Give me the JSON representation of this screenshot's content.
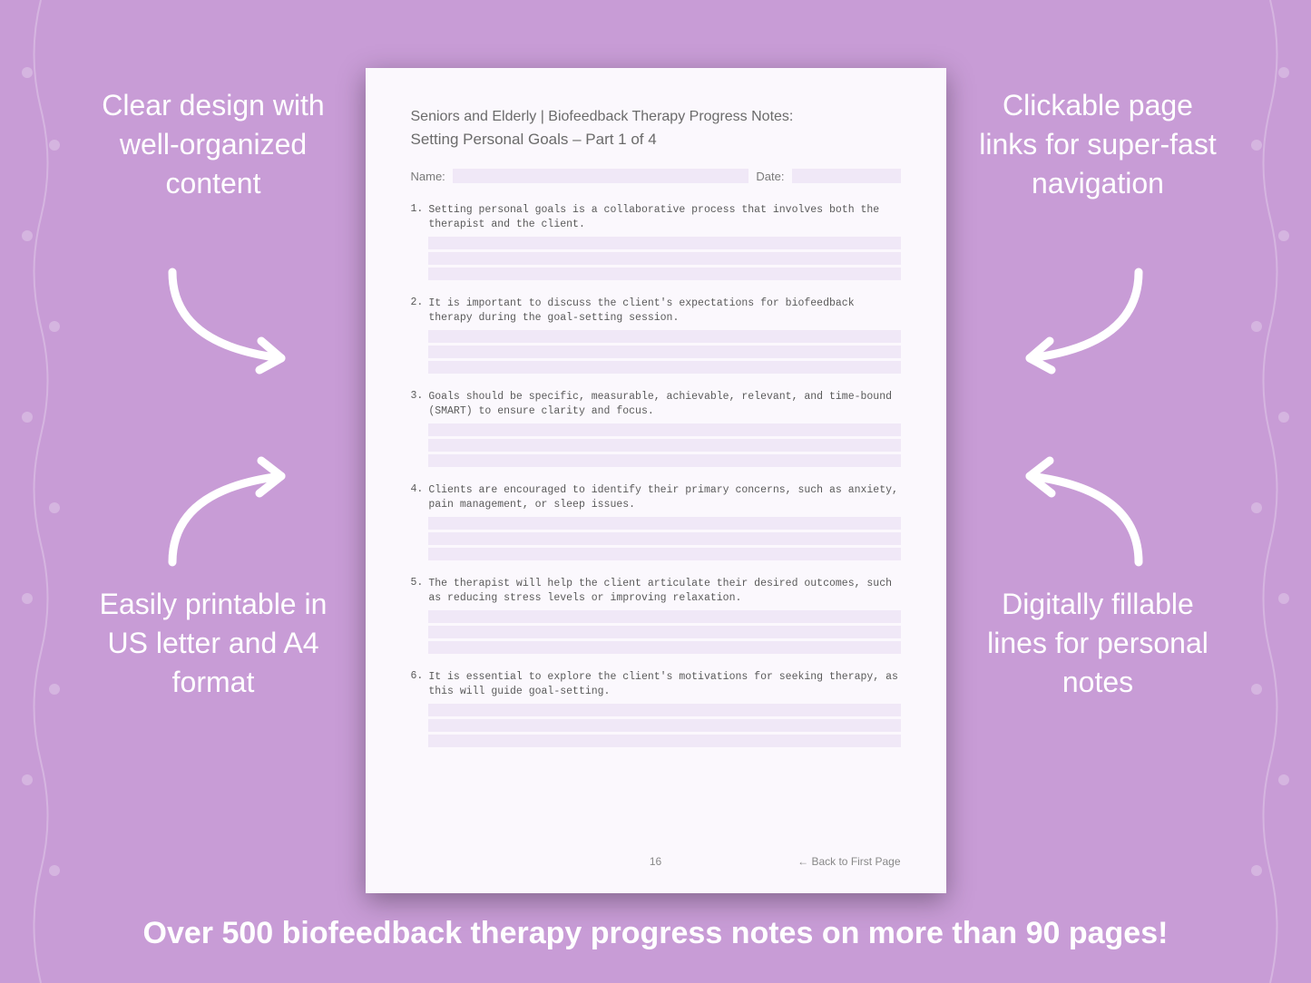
{
  "background_color": "#c89cd6",
  "callouts": {
    "top_left": "Clear design with well-organized content",
    "top_right": "Clickable page links for super-fast navigation",
    "bottom_left": "Easily printable in US letter and A4 format",
    "bottom_right": "Digitally fillable lines for personal notes"
  },
  "bottom_banner": "Over 500 biofeedback therapy progress notes on more than 90 pages!",
  "callout_style": {
    "color": "#ffffff",
    "fontsize": 32,
    "weight": 400
  },
  "banner_style": {
    "color": "#ffffff",
    "fontsize": 34,
    "weight": 700
  },
  "arrow_color": "#ffffff",
  "page": {
    "background": "#fbf8fd",
    "shadow": "rgba(0,0,0,0.35)",
    "title_line1": "Seniors and Elderly | Biofeedback Therapy Progress Notes:",
    "title_line2": "Setting Personal Goals  – Part 1 of 4",
    "name_label": "Name:",
    "date_label": "Date:",
    "field_fill": "#f0e8f7",
    "title_color": "#6b6b6b",
    "body_color": "#5a5a5a",
    "body_font": "Courier New",
    "body_fontsize": 11.5,
    "items": [
      {
        "n": "1.",
        "text": "Setting personal goals is a collaborative process that involves both the therapist and the client."
      },
      {
        "n": "2.",
        "text": "It is important to discuss the client's expectations for biofeedback therapy during the goal-setting session."
      },
      {
        "n": "3.",
        "text": "Goals should be specific, measurable, achievable, relevant, and time-bound (SMART) to ensure clarity and focus."
      },
      {
        "n": "4.",
        "text": "Clients are encouraged to identify their primary concerns, such as anxiety, pain management, or sleep issues."
      },
      {
        "n": "5.",
        "text": "The therapist will help the client articulate their desired outcomes, such as reducing stress levels or improving relaxation."
      },
      {
        "n": "6.",
        "text": "It is essential to explore the client's motivations for seeking therapy, as this will guide goal-setting."
      }
    ],
    "note_lines_per_item": 3,
    "footer": {
      "page_number": "16",
      "back_link": "← Back to First Page"
    }
  }
}
